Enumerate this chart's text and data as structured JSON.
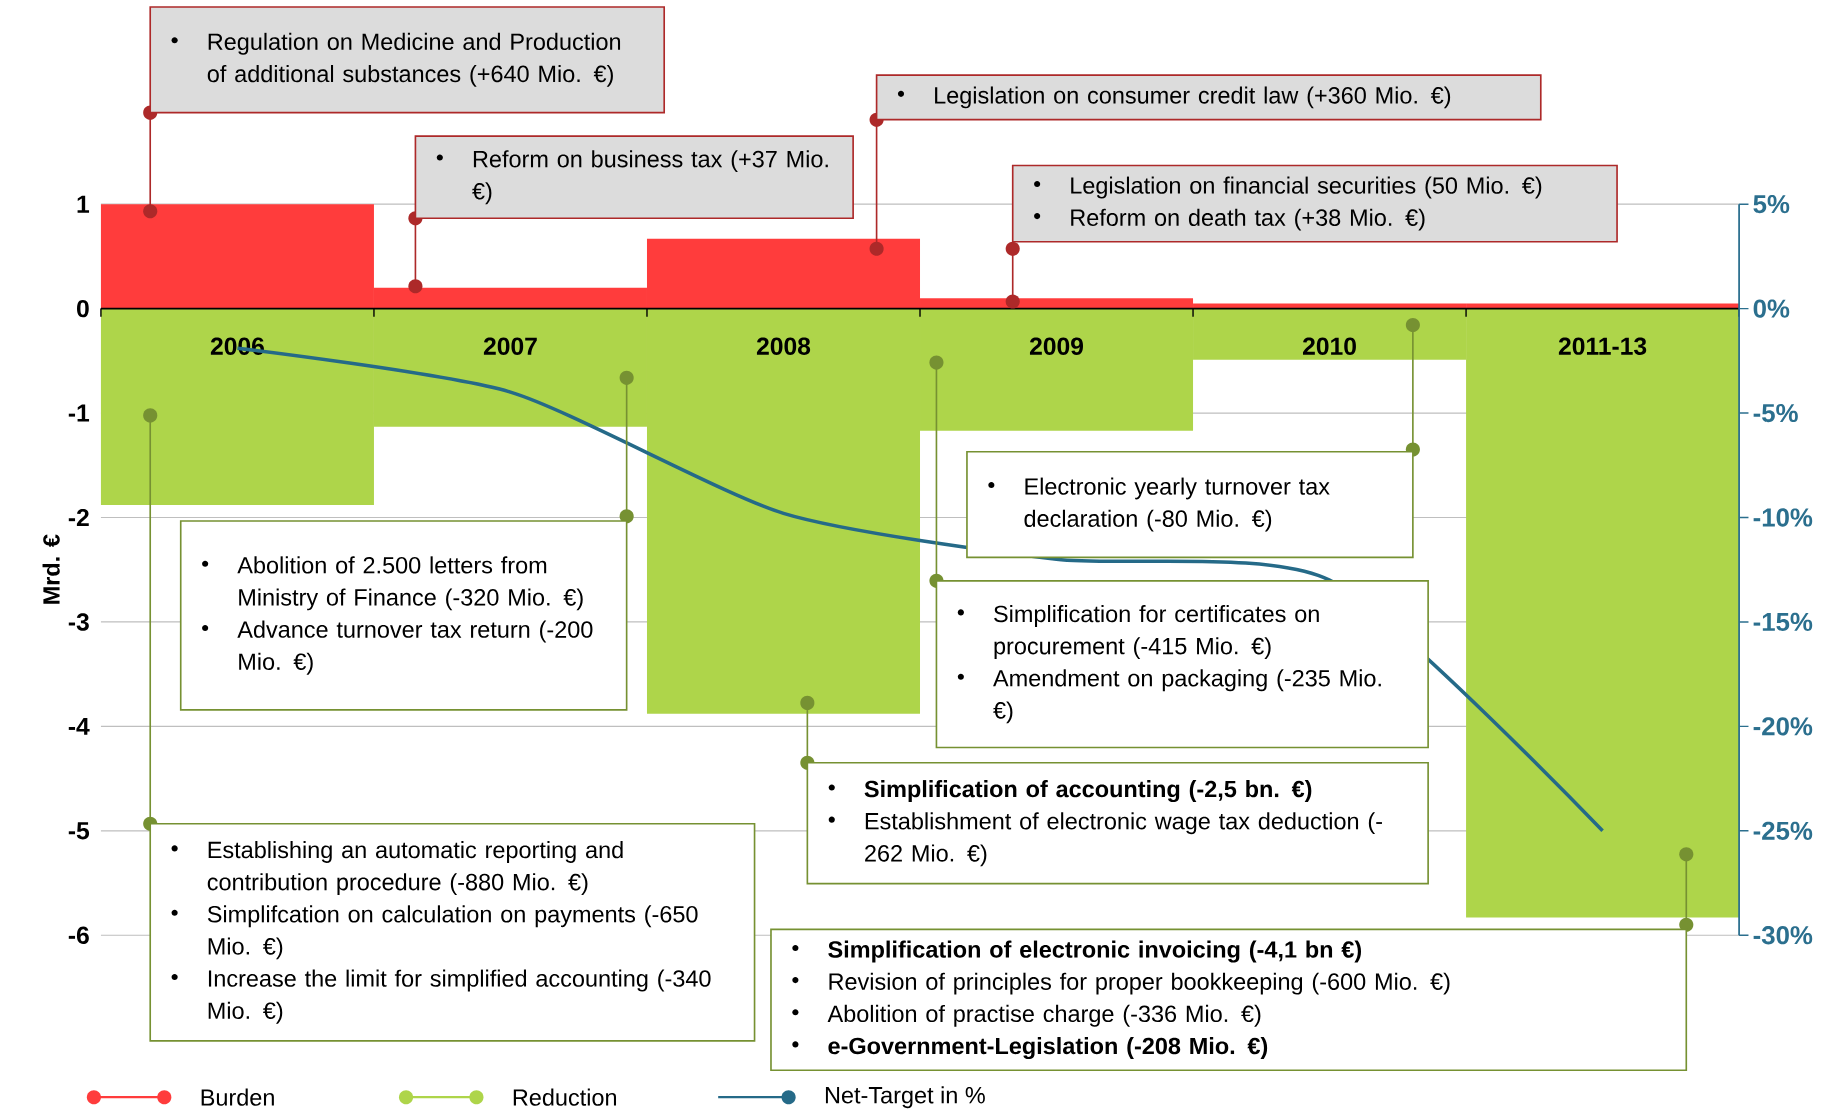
{
  "chart_data": {
    "type": "bar",
    "categories": [
      "2006",
      "2007",
      "2008",
      "2009",
      "2010",
      "2011-13"
    ],
    "series": [
      {
        "name": "Burden",
        "color": "#ff3c3c",
        "values": [
          1.0,
          0.2,
          0.67,
          0.1,
          0.05,
          0.05
        ]
      },
      {
        "name": "Reduction",
        "color": "#aed54a",
        "values": [
          -1.88,
          -1.13,
          -3.88,
          -1.17,
          -0.49,
          -5.83
        ]
      },
      {
        "name": "Net-Target in %",
        "type": "line",
        "axis": "y2",
        "color": "#256a88",
        "values": [
          -1.9,
          -4.0,
          -9.8,
          -12.0,
          -13.0,
          -25
        ]
      }
    ],
    "ylabel": "Mrd. €",
    "ylim": [
      -6,
      1
    ],
    "yticks": [
      1,
      0,
      -1,
      -2,
      -3,
      -4,
      -5,
      -6
    ],
    "y2lim": [
      -30,
      5
    ],
    "y2ticks": [
      {
        "value": 5,
        "label": "5%"
      },
      {
        "value": 0,
        "label": "0%"
      },
      {
        "value": -5,
        "label": "-5%"
      },
      {
        "value": -10,
        "label": "-10%"
      },
      {
        "value": -15,
        "label": "-15%"
      },
      {
        "value": -20,
        "label": "-20%"
      },
      {
        "value": -25,
        "label": "-25%"
      },
      {
        "value": -30,
        "label": "-30%"
      }
    ],
    "grid": "y",
    "legend": "bottom left",
    "stacked": true,
    "annotations": [
      "Regulation on Medicine and Production of additional substances (+640 Mio. €)",
      "Reform on business tax (+37 Mio. €)",
      "Legislation on consumer credit law (+360 Mio. €)",
      "Legislation on financial securities (50 Mio. €)",
      "Reform on death tax (+38 Mio. €)",
      "Abolition of 2.500 letters from Ministry of Finance (-320 Mio. €)",
      "Advance turnover tax return (-200 Mio. €)",
      "Electronic yearly turnover tax declaration (-80 Mio. €)",
      "Simplification for certificates on procurement (-415 Mio. €)",
      "Amendment on packaging (-235 Mio. €)",
      "**Simplification of accounting (-2,5 bn. €)**",
      "Establishment of electronic wage tax deduction (-262 Mio. €)",
      "Establishing an automatic reporting and contribution procedure (-880 Mio. €)",
      "Simplifcation on calculation on payments (-650 Mio. €)",
      "Increase the limit for simplified accounting (-340 Mio. €)",
      "**Simplification of electronic invoicing (-4,1 bn €)**",
      "Revision of principles for proper bookkeeping (-600 Mio. €)",
      "Abolition of practise charge (-336 Mio. €)",
      "**e-Government-Legislation (-208 Mio. €)**"
    ]
  }
}
